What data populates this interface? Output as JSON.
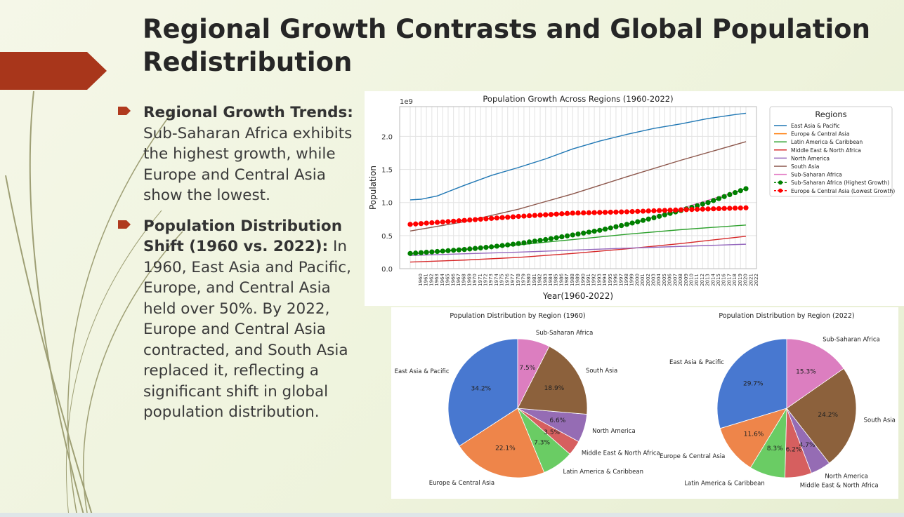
{
  "slide": {
    "title": "Regional Growth Contrasts and Global Population Redistribution",
    "bullets": [
      {
        "heading": "Regional Growth Trends:",
        "text": "Sub-Saharan Africa exhibits the highest growth, while Europe and Central Asia show the lowest."
      },
      {
        "heading": "Population Distribution Shift (1960 vs. 2022):",
        "text": "In 1960, East Asia and Pacific, Europe, and Central Asia held over 50%. By 2022, Europe and Central Asia contracted, and South Asia replaced it, reflecting a significant shift in global population distribution."
      }
    ],
    "colors": {
      "accent": "#a8361b",
      "bullet": "#b03a1e",
      "deco_lines": "#8a8a5a"
    }
  },
  "chart_data": [
    {
      "type": "line",
      "title": "Population Growth Across Regions (1960-2022)",
      "xlabel": "Year(1960-2022)",
      "ylabel": "Population",
      "y_multiplier_label": "1e9",
      "ylim": [
        0.0,
        2.45
      ],
      "yticks": [
        "0.0",
        "0.5",
        "1.0",
        "1.5",
        "2.0"
      ],
      "xlim": [
        1960,
        2022
      ],
      "x_start": 1960,
      "x_end": 2022,
      "grid": true,
      "legend_title": "Regions",
      "legend_position": "right",
      "series": [
        {
          "name": "East Asia & Pacific",
          "color": "#1f77b4",
          "marker": false,
          "x": [
            1960,
            1962,
            1965,
            1970,
            1975,
            1980,
            1985,
            1990,
            1995,
            2000,
            2005,
            2010,
            2015,
            2020,
            2022
          ],
          "values": [
            1.04,
            1.05,
            1.1,
            1.26,
            1.41,
            1.53,
            1.66,
            1.81,
            1.93,
            2.03,
            2.12,
            2.19,
            2.27,
            2.33,
            2.35
          ]
        },
        {
          "name": "Europe & Central Asia",
          "color": "#ff7f0e",
          "marker": false,
          "x": [
            1960,
            1980,
            2000,
            2022
          ],
          "values": [
            0.67,
            0.79,
            0.86,
            0.92
          ]
        },
        {
          "name": "Latin America & Caribbean",
          "color": "#2ca02c",
          "marker": false,
          "x": [
            1960,
            1970,
            1980,
            1990,
            2000,
            2010,
            2022
          ],
          "values": [
            0.22,
            0.29,
            0.36,
            0.44,
            0.52,
            0.59,
            0.66
          ]
        },
        {
          "name": "Middle East & North Africa",
          "color": "#d62728",
          "marker": false,
          "x": [
            1960,
            1970,
            1980,
            1990,
            2000,
            2010,
            2022
          ],
          "values": [
            0.1,
            0.13,
            0.17,
            0.23,
            0.3,
            0.38,
            0.49
          ]
        },
        {
          "name": "North America",
          "color": "#9467bd",
          "marker": false,
          "x": [
            1960,
            1980,
            2000,
            2022
          ],
          "values": [
            0.2,
            0.25,
            0.31,
            0.37
          ]
        },
        {
          "name": "South Asia",
          "color": "#8c564b",
          "marker": false,
          "x": [
            1960,
            1970,
            1980,
            1990,
            2000,
            2010,
            2022
          ],
          "values": [
            0.57,
            0.71,
            0.9,
            1.13,
            1.39,
            1.64,
            1.92
          ]
        },
        {
          "name": "Sub-Saharan Africa",
          "color": "#e377c2",
          "marker": false,
          "x": [
            1960,
            1980,
            2000,
            2022
          ],
          "values": [
            0.23,
            0.37,
            0.66,
            1.21
          ]
        },
        {
          "name": "Sub-Saharan Africa (Highest Growth)",
          "color": "#008000",
          "marker": true,
          "x": [
            1960,
            1965,
            1970,
            1975,
            1980,
            1985,
            1990,
            1995,
            2000,
            2005,
            2010,
            2015,
            2020,
            2022
          ],
          "values": [
            0.23,
            0.26,
            0.29,
            0.33,
            0.38,
            0.44,
            0.51,
            0.58,
            0.67,
            0.77,
            0.88,
            1.0,
            1.15,
            1.21
          ]
        },
        {
          "name": "Europe & Central Asia (Lowest Growth)",
          "color": "#ff0000",
          "marker": true,
          "x": [
            1960,
            1970,
            1980,
            1990,
            2000,
            2010,
            2022
          ],
          "values": [
            0.67,
            0.73,
            0.79,
            0.84,
            0.86,
            0.89,
            0.92
          ]
        }
      ]
    },
    {
      "type": "pie",
      "title": "Population Distribution by Region (1960)",
      "slices": [
        {
          "label": "East Asia & Pacific",
          "value": 34.2,
          "pct": "34.2%",
          "color": "#4878d0"
        },
        {
          "label": "Europe & Central Asia",
          "value": 22.1,
          "pct": "22.1%",
          "color": "#ee854a"
        },
        {
          "label": "Latin America & Caribbean",
          "value": 7.3,
          "pct": "7.3%",
          "color": "#6acc64"
        },
        {
          "label": "Middle East & North Africa",
          "value": 3.5,
          "pct": "3.5%",
          "color": "#d65f5f"
        },
        {
          "label": "North America",
          "value": 6.6,
          "pct": "6.6%",
          "color": "#956cb4"
        },
        {
          "label": "South Asia",
          "value": 18.9,
          "pct": "18.9%",
          "color": "#8c613c"
        },
        {
          "label": "Sub-Saharan Africa",
          "value": 7.5,
          "pct": "7.5%",
          "color": "#dc7ec0"
        }
      ]
    },
    {
      "type": "pie",
      "title": "Population Distribution by Region (2022)",
      "slices": [
        {
          "label": "East Asia & Pacific",
          "value": 29.7,
          "pct": "29.7%",
          "color": "#4878d0"
        },
        {
          "label": "Europe & Central Asia",
          "value": 11.6,
          "pct": "11.6%",
          "color": "#ee854a"
        },
        {
          "label": "Latin America & Caribbean",
          "value": 8.3,
          "pct": "8.3%",
          "color": "#6acc64"
        },
        {
          "label": "Middle East & North Africa",
          "value": 6.2,
          "pct": "6.2%",
          "color": "#d65f5f"
        },
        {
          "label": "North America",
          "value": 4.7,
          "pct": "4.7%",
          "color": "#956cb4"
        },
        {
          "label": "South Asia",
          "value": 24.2,
          "pct": "24.2%",
          "color": "#8c613c"
        },
        {
          "label": "Sub-Saharan Africa",
          "value": 15.3,
          "pct": "15.3%",
          "color": "#dc7ec0"
        }
      ]
    }
  ]
}
